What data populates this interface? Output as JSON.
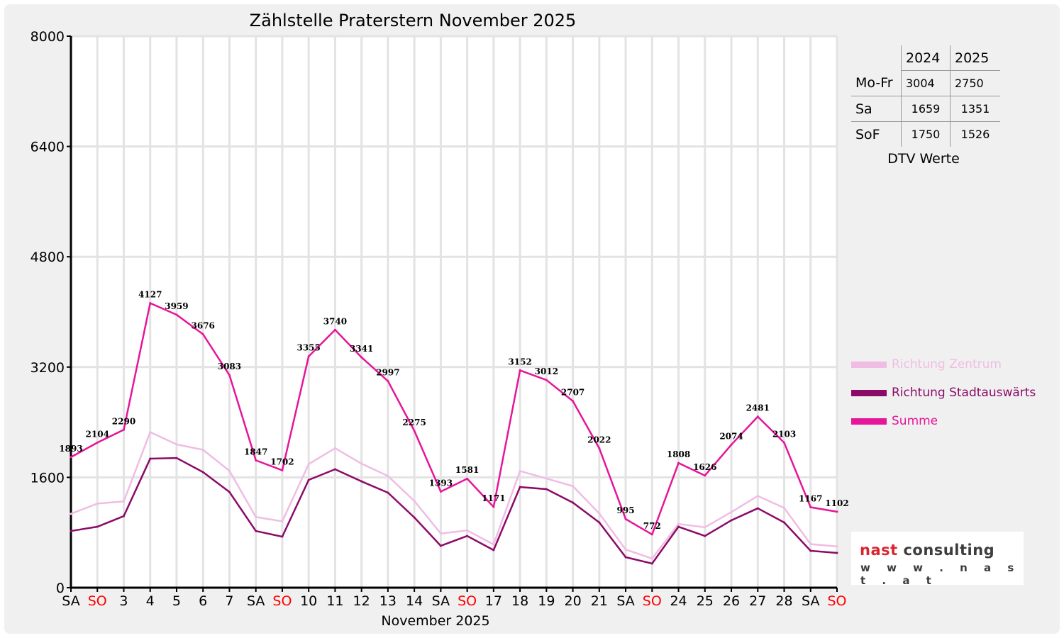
{
  "chart_data": {
    "type": "line",
    "title": "Zählstelle Praterstern November 2025",
    "xlabel": "November 2025",
    "ylabel": "",
    "ylim": [
      0,
      8000
    ],
    "yticks": [
      0,
      1600,
      3200,
      4800,
      6400,
      8000
    ],
    "grid": true,
    "legend_position": "right",
    "categories": [
      "SA",
      "SO",
      "3",
      "4",
      "5",
      "6",
      "7",
      "SA",
      "SO",
      "10",
      "11",
      "12",
      "13",
      "14",
      "SA",
      "SO",
      "17",
      "18",
      "19",
      "20",
      "21",
      "SA",
      "SO",
      "24",
      "25",
      "26",
      "27",
      "28",
      "SA",
      "SO"
    ],
    "sunday_color": "#ff0000",
    "series": [
      {
        "name": "Richtung Zentrum",
        "color": "#efbde3",
        "values": [
          1071,
          1220,
          1252,
          2256,
          2078,
          2000,
          1695,
          1025,
          962,
          1792,
          2023,
          1799,
          1619,
          1257,
          786,
          831,
          626,
          1692,
          1583,
          1473,
          1076,
          553,
          422,
          924,
          876,
          1097,
          1330,
          1157,
          632,
          598
        ]
      },
      {
        "name": "Richtung Stadtauswärts",
        "color": "#8b0a68",
        "values": [
          822,
          884,
          1038,
          1871,
          1881,
          1676,
          1388,
          822,
          740,
          1563,
          1717,
          1542,
          1378,
          1018,
          607,
          750,
          545,
          1460,
          1429,
          1234,
          946,
          442,
          350,
          884,
          750,
          977,
          1151,
          946,
          535,
          504
        ]
      },
      {
        "name": "Summe",
        "color": "#e6159a",
        "values": [
          1893,
          2104,
          2290,
          4127,
          3959,
          3676,
          3083,
          1847,
          1702,
          3355,
          3740,
          3341,
          2997,
          2275,
          1393,
          1581,
          1171,
          3152,
          3012,
          2707,
          2022,
          995,
          772,
          1808,
          1626,
          2074,
          2481,
          2103,
          1167,
          1102
        ],
        "labeled": true
      }
    ]
  },
  "dtv_table": {
    "caption": "DTV Werte",
    "columns": [
      "",
      "2024",
      "2025"
    ],
    "rows": [
      [
        "Mo-Fr",
        "3004",
        "2750"
      ],
      [
        "Sa",
        "1659",
        "1351"
      ],
      [
        "SoF",
        "1750",
        "1526"
      ]
    ]
  },
  "logo": {
    "name_red": "nast",
    "name_grey": "consulting",
    "url": "w w w . n a s t . a t"
  }
}
